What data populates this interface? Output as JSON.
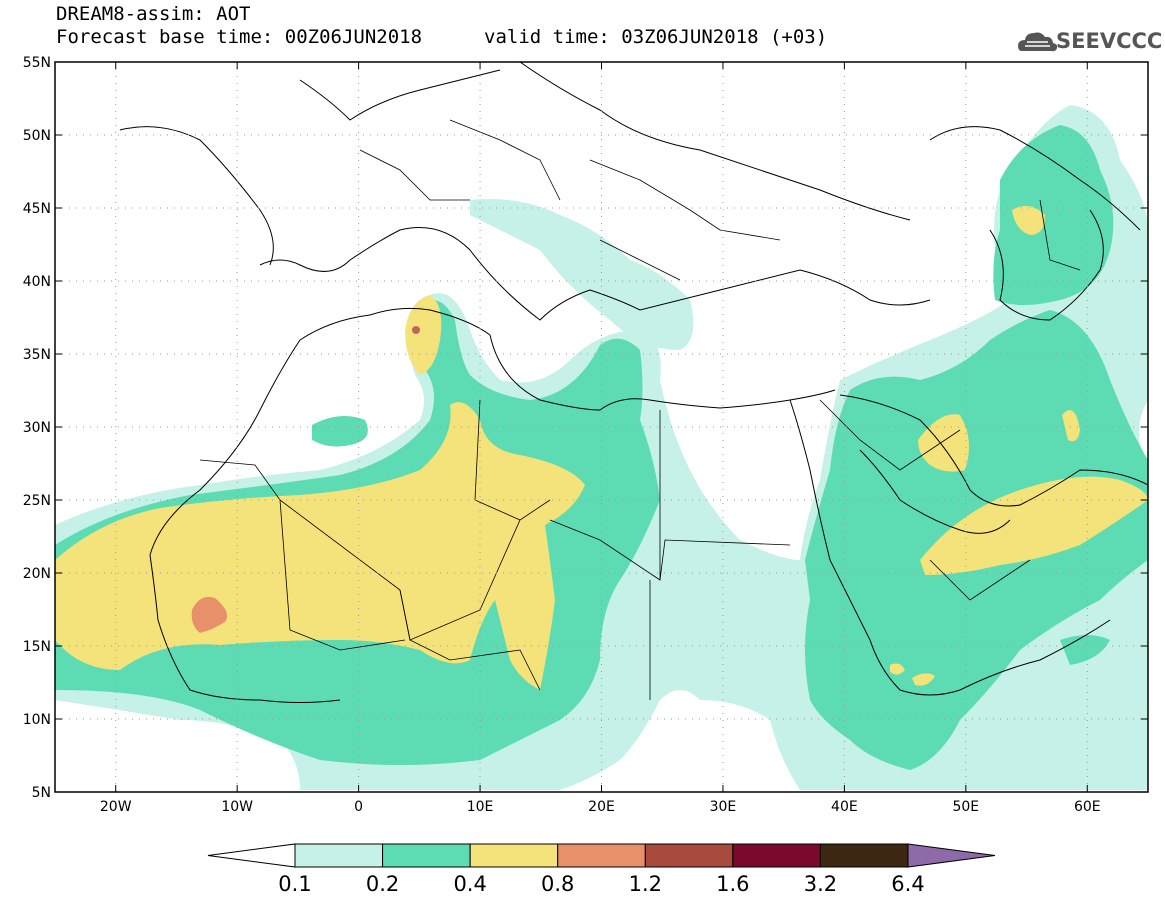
{
  "header": {
    "title_line1": "DREAM8-assim: AOT",
    "title_line2": "Forecast base time: 00Z06JUN2018",
    "valid_time": "valid time: 03Z06JUN2018 (+03)",
    "logo_text": "SEEVCCC",
    "logo_icon": "cloud-icon"
  },
  "map": {
    "region": {
      "lon_min": -25,
      "lon_max": 65,
      "lat_min": 5,
      "lat_max": 55
    },
    "lat_ticks": [
      {
        "value": 55,
        "label": "55N"
      },
      {
        "value": 50,
        "label": "50N"
      },
      {
        "value": 45,
        "label": "45N"
      },
      {
        "value": 40,
        "label": "40N"
      },
      {
        "value": 35,
        "label": "35N"
      },
      {
        "value": 30,
        "label": "30N"
      },
      {
        "value": 25,
        "label": "25N"
      },
      {
        "value": 20,
        "label": "20N"
      },
      {
        "value": 15,
        "label": "15N"
      },
      {
        "value": 10,
        "label": "10N"
      },
      {
        "value": 5,
        "label": "5N"
      }
    ],
    "lon_ticks": [
      {
        "value": -20,
        "label": "20W"
      },
      {
        "value": -10,
        "label": "10W"
      },
      {
        "value": 0,
        "label": "0"
      },
      {
        "value": 10,
        "label": "10E"
      },
      {
        "value": 20,
        "label": "20E"
      },
      {
        "value": 30,
        "label": "30E"
      },
      {
        "value": 40,
        "label": "40E"
      },
      {
        "value": 50,
        "label": "50E"
      },
      {
        "value": 60,
        "label": "60E"
      }
    ],
    "gridlines": "dotted"
  },
  "colorbar": {
    "levels": [
      "0.1",
      "0.2",
      "0.4",
      "0.8",
      "1.2",
      "1.6",
      "3.2",
      "6.4"
    ],
    "colors": [
      "#ffffff",
      "#c6f1e8",
      "#5ddcb3",
      "#f4e27a",
      "#e8906a",
      "#a84a3e",
      "#7a0a2c",
      "#3d2612",
      "#8e6aa8"
    ]
  }
}
